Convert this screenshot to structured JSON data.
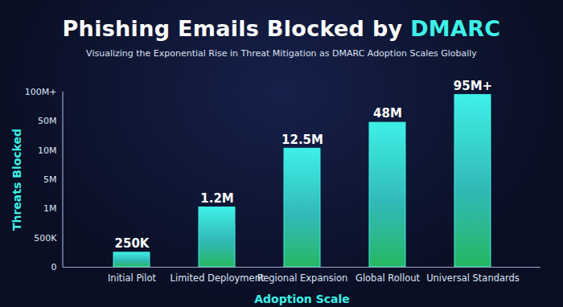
{
  "chart_data": {
    "type": "bar",
    "title": "Phishing Emails Blocked by DMARC",
    "subtitle": "Visualizing the Exponential Rise in Threat Mitigation as DMARC Adoption Scales Globally",
    "x_label": "Adoption Scale",
    "y_label": "Threats Blocked",
    "categories": [
      "Initial Pilot",
      "Limited Deployment",
      "Regional Expansion",
      "Global Rollout",
      "Universal Standards"
    ],
    "values": [
      250000,
      1200000,
      12500000,
      48000000,
      95000000
    ],
    "value_labels": [
      "250K",
      "1.2M",
      "12.5M",
      "48M",
      "95M+"
    ],
    "color": "#3ef0e6",
    "ylim": [
      0,
      100000000
    ],
    "yticks": [
      0,
      {
        "value": 500000,
        "label": "500K"
      },
      {
        "value": 1000000,
        "label": "1M"
      },
      {
        "value": 5000000,
        "label": "5M"
      },
      {
        "value": 10000000,
        "label": "10M"
      },
      {
        "value": 50000000,
        "label": "50M"
      },
      {
        "value": 100000000,
        "label": "100M+"
      }
    ],
    "data_labels": true,
    "grid": false
  }
}
